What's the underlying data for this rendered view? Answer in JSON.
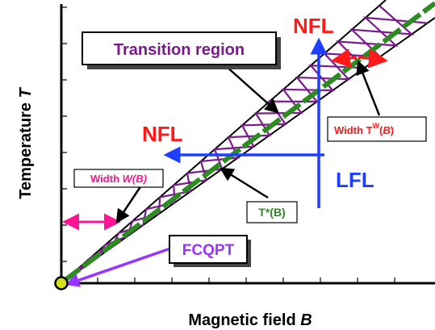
{
  "axes": {
    "xlabel_text": "Magnetic field ",
    "xlabel_var": "B",
    "ylabel_text": "Temperature ",
    "ylabel_var": "T"
  },
  "labels": {
    "transition_region": "Transition region",
    "nfl_top": "NFL",
    "nfl_left": "NFL",
    "lfl": "LFL",
    "width_wb_prefix": "Width ",
    "width_wb_var": "W(B)",
    "tstar": "T*(B)",
    "width_tw_prefix": "Width T",
    "width_tw_sup": "W",
    "width_tw_open": "(",
    "width_tw_var": "B",
    "width_tw_close": ")",
    "fcqpt": "FCQPT"
  },
  "colors": {
    "nfl": "#ff1a1a",
    "lfl": "#1f3fff",
    "transition": "#7a1a8c",
    "tstar_line": "#2e8b22",
    "width_wb": "#ff1493",
    "fcqpt": "#9933ff",
    "point_fill": "#d4e21c"
  },
  "icons": {
    "origin_point": "critical-point-dot",
    "arrows": "arrow-icon"
  }
}
